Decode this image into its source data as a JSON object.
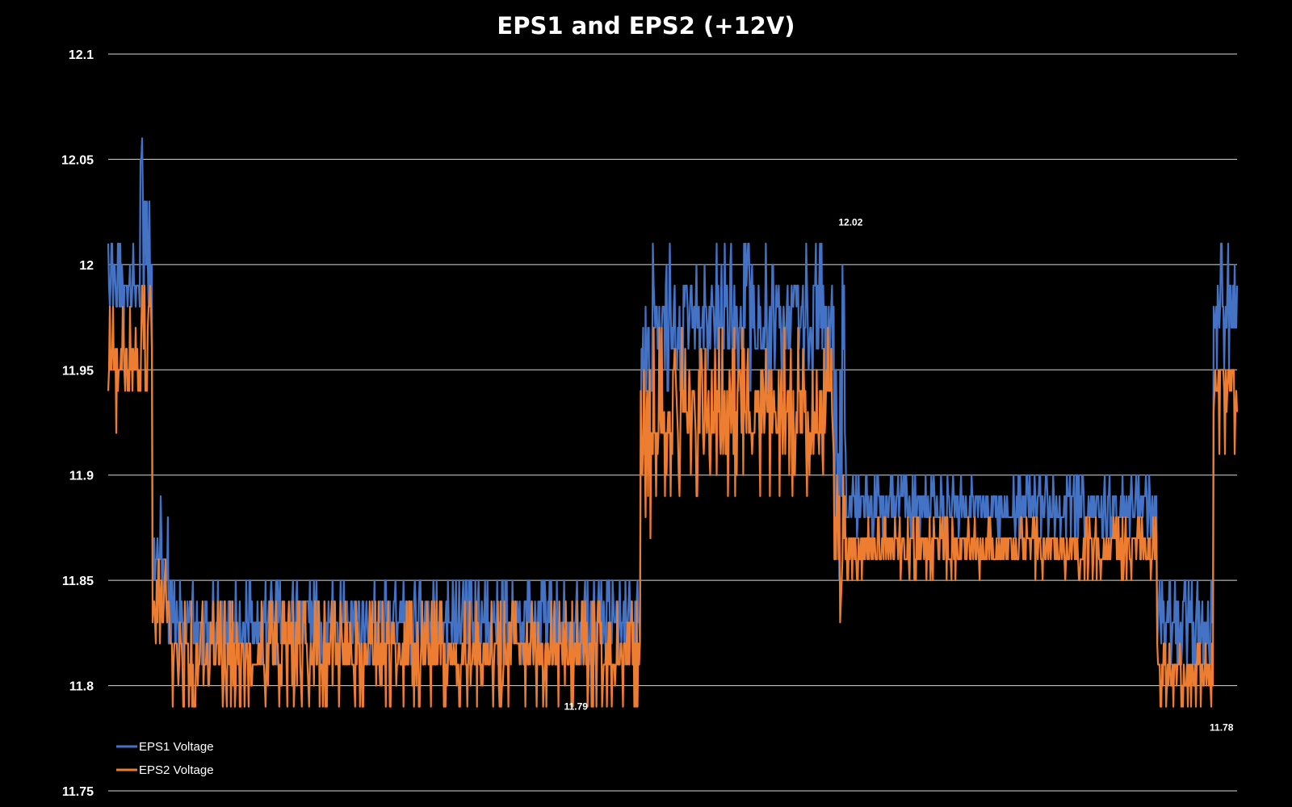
{
  "chart_data": {
    "type": "line",
    "title": "EPS1 and EPS2 (+12V)",
    "xlabel": "",
    "ylabel": "",
    "ylim": [
      11.75,
      12.1
    ],
    "y_ticks": [
      "11.75",
      "11.8",
      "11.85",
      "11.9",
      "11.95",
      "12",
      "12.05",
      "12.1"
    ],
    "grid": true,
    "legend_position": "bottom-left",
    "samples": 1400,
    "series": [
      {
        "name": "EPS1 Voltage",
        "color": "#4472C4",
        "segments": [
          {
            "start": 0,
            "end": 40,
            "low": 11.96,
            "high": 12.01
          },
          {
            "start": 40,
            "end": 55,
            "low": 11.97,
            "high": 12.06
          },
          {
            "start": 55,
            "end": 75,
            "low": 11.83,
            "high": 11.89
          },
          {
            "start": 75,
            "end": 660,
            "low": 11.81,
            "high": 11.85
          },
          {
            "start": 660,
            "end": 675,
            "low": 11.9,
            "high": 11.99
          },
          {
            "start": 675,
            "end": 900,
            "low": 11.94,
            "high": 12.01
          },
          {
            "start": 900,
            "end": 915,
            "low": 11.85,
            "high": 12.0
          },
          {
            "start": 915,
            "end": 1300,
            "low": 11.87,
            "high": 11.9
          },
          {
            "start": 1300,
            "end": 1370,
            "low": 11.81,
            "high": 11.85
          },
          {
            "start": 1370,
            "end": 1400,
            "low": 11.95,
            "high": 12.01
          }
        ]
      },
      {
        "name": "EPS2 Voltage",
        "color": "#ED7D31",
        "segments": [
          {
            "start": 0,
            "end": 40,
            "low": 11.92,
            "high": 11.98
          },
          {
            "start": 40,
            "end": 55,
            "low": 11.94,
            "high": 12.01
          },
          {
            "start": 55,
            "end": 75,
            "low": 11.82,
            "high": 11.86
          },
          {
            "start": 75,
            "end": 660,
            "low": 11.79,
            "high": 11.84
          },
          {
            "start": 660,
            "end": 675,
            "low": 11.87,
            "high": 11.96
          },
          {
            "start": 675,
            "end": 900,
            "low": 11.89,
            "high": 11.97
          },
          {
            "start": 900,
            "end": 915,
            "low": 11.83,
            "high": 11.92
          },
          {
            "start": 915,
            "end": 1300,
            "low": 11.85,
            "high": 11.88
          },
          {
            "start": 1300,
            "end": 1370,
            "low": 11.79,
            "high": 11.82
          },
          {
            "start": 1370,
            "end": 1400,
            "low": 11.91,
            "high": 11.97
          }
        ]
      }
    ],
    "annotations": [
      {
        "text": "12.02",
        "x": 895,
        "y": 12.02
      },
      {
        "text": "11.79",
        "x": 555,
        "y": 11.79
      },
      {
        "text": "11.78",
        "x": 1355,
        "y": 11.78
      }
    ]
  }
}
